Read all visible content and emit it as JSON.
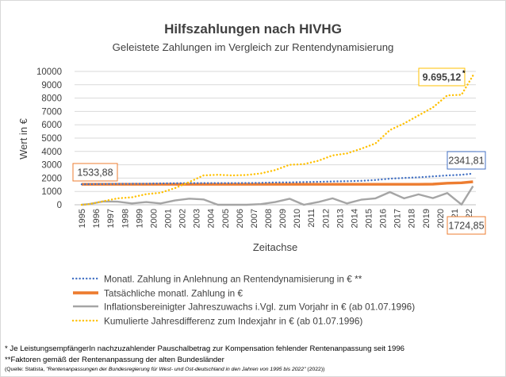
{
  "chart_data": {
    "type": "line",
    "title": "Hilfszahlungen nach HIVHG",
    "subtitle": "Geleistete Zahlungen im Vergleich zur Rentendynamisierung",
    "xlabel": "Zeitachse",
    "ylabel": "Wert in €",
    "ylim": [
      0,
      10000
    ],
    "yticks": [
      0,
      1000,
      2000,
      3000,
      4000,
      5000,
      6000,
      7000,
      8000,
      9000,
      10000
    ],
    "grid": true,
    "legend_position": "bottom",
    "categories": [
      "1995",
      "1996",
      "1997",
      "1998",
      "1999",
      "2000",
      "2001",
      "2002",
      "2003",
      "2004",
      "2005",
      "2006",
      "2007",
      "2008",
      "2009",
      "2010",
      "2011",
      "2012",
      "2013",
      "2014",
      "2015",
      "2016",
      "2017",
      "2018",
      "2019",
      "2020",
      "2021",
      "2022"
    ],
    "series": [
      {
        "name": "Monatl. Zahlung in Anlehnung an Rentendynamisierung in € **",
        "color": "#4472c4",
        "style": "dotted",
        "width": 2.4,
        "points": [
          [
            0,
            1533.88
          ],
          [
            0.5,
            1545
          ],
          [
            1.5,
            1560
          ],
          [
            2.5,
            1570
          ],
          [
            3.5,
            1575
          ],
          [
            4.5,
            1585
          ],
          [
            5.5,
            1600
          ],
          [
            6.5,
            1615
          ],
          [
            7.5,
            1625
          ],
          [
            8.5,
            1625
          ],
          [
            9.5,
            1625
          ],
          [
            10.5,
            1625
          ],
          [
            11.5,
            1630
          ],
          [
            12.5,
            1640
          ],
          [
            13.5,
            1670
          ],
          [
            14.5,
            1680
          ],
          [
            15.5,
            1700
          ],
          [
            16.5,
            1720
          ],
          [
            17.5,
            1750
          ],
          [
            18.5,
            1770
          ],
          [
            19.5,
            1800
          ],
          [
            20.5,
            1860
          ],
          [
            21.5,
            1960
          ],
          [
            22.5,
            2010
          ],
          [
            23.5,
            2060
          ],
          [
            24.5,
            2130
          ],
          [
            25.5,
            2200
          ],
          [
            26.5,
            2250
          ],
          [
            27.3,
            2341.81
          ]
        ]
      },
      {
        "name": "Tatsächliche monatl. Zahlung in €",
        "color": "#ed7d31",
        "style": "solid",
        "width": 3.4,
        "points": [
          [
            0,
            1533.88
          ],
          [
            23.5,
            1533.88
          ],
          [
            24.5,
            1550
          ],
          [
            25.5,
            1620
          ],
          [
            26.5,
            1650
          ],
          [
            27.3,
            1724.85
          ]
        ]
      },
      {
        "name": "Inflationsbereinigter Jahreszuwachs i.Vgl. zum Vorjahr in € (ab 01.07.1996)",
        "color": "#a5a5a5",
        "style": "solid",
        "width": 2.4,
        "points": [
          [
            0,
            0
          ],
          [
            0.5,
            50
          ],
          [
            1.5,
            250
          ],
          [
            2.5,
            230
          ],
          [
            3.5,
            100
          ],
          [
            4.5,
            200
          ],
          [
            5.5,
            100
          ],
          [
            6.5,
            320
          ],
          [
            7.5,
            460
          ],
          [
            8.5,
            400
          ],
          [
            9.5,
            0
          ],
          [
            10.5,
            0
          ],
          [
            11.5,
            0
          ],
          [
            12.5,
            50
          ],
          [
            13.5,
            200
          ],
          [
            14.5,
            450
          ],
          [
            15.5,
            0
          ],
          [
            16.5,
            200
          ],
          [
            17.5,
            480
          ],
          [
            18.5,
            100
          ],
          [
            19.5,
            380
          ],
          [
            20.5,
            480
          ],
          [
            21.5,
            950
          ],
          [
            22.5,
            480
          ],
          [
            23.5,
            780
          ],
          [
            24.5,
            500
          ],
          [
            25.5,
            880
          ],
          [
            26.5,
            20
          ],
          [
            27.3,
            1400
          ]
        ]
      },
      {
        "name": "Kumulierte Jahresdifferenz zum Indexjahr in € (ab 01.07.1996)",
        "color": "#ffc000",
        "style": "dotted",
        "width": 2.4,
        "points": [
          [
            0,
            0
          ],
          [
            0.5,
            40
          ],
          [
            1.5,
            260
          ],
          [
            2.5,
            480
          ],
          [
            3.5,
            560
          ],
          [
            4.5,
            800
          ],
          [
            5.5,
            900
          ],
          [
            6.5,
            1250
          ],
          [
            7.5,
            1700
          ],
          [
            8.5,
            2200
          ],
          [
            9.5,
            2250
          ],
          [
            10.5,
            2200
          ],
          [
            11.5,
            2230
          ],
          [
            12.5,
            2350
          ],
          [
            13.5,
            2600
          ],
          [
            14.5,
            3000
          ],
          [
            15.5,
            3050
          ],
          [
            16.5,
            3300
          ],
          [
            17.5,
            3700
          ],
          [
            18.5,
            3850
          ],
          [
            19.5,
            4200
          ],
          [
            20.5,
            4600
          ],
          [
            21.5,
            5600
          ],
          [
            22.5,
            6100
          ],
          [
            23.5,
            6700
          ],
          [
            24.5,
            7300
          ],
          [
            25.5,
            8200
          ],
          [
            26.5,
            8250
          ],
          [
            27.3,
            9695.12
          ]
        ]
      }
    ],
    "annotations": [
      {
        "text": "1533,88",
        "x": 0,
        "value": 1533.88,
        "color": "#ed7d31",
        "bold": false
      },
      {
        "text": "2341,81",
        "x": 27.3,
        "value": 2341.81,
        "color": "#4472c4",
        "bold": false
      },
      {
        "text": "1724,85",
        "x": 27.3,
        "value": 1724.85,
        "color": "#ed7d31",
        "bold": false
      },
      {
        "text": "9.695,12",
        "x": 27.3,
        "value": 9695.12,
        "color": "#ffc000",
        "bold": true
      }
    ],
    "star_marker": "*"
  },
  "footnotes": {
    "line1": "* Je LeistungsempfängerIn nachzuzahlender Pauschalbetrag zur Kompensation fehlender Rentenanpassung seit 1996",
    "line2": "**Faktoren gemäß der Rentenanpassung der alten Bundesländer",
    "source_prefix": "(Quelle: Statista, ",
    "source_italic": "\"Rentenanpassungen der Bundesregierung für West- und Ost-deutschland in den Jahren von 1995 bis 2022\"",
    "source_suffix": " (2022))"
  }
}
